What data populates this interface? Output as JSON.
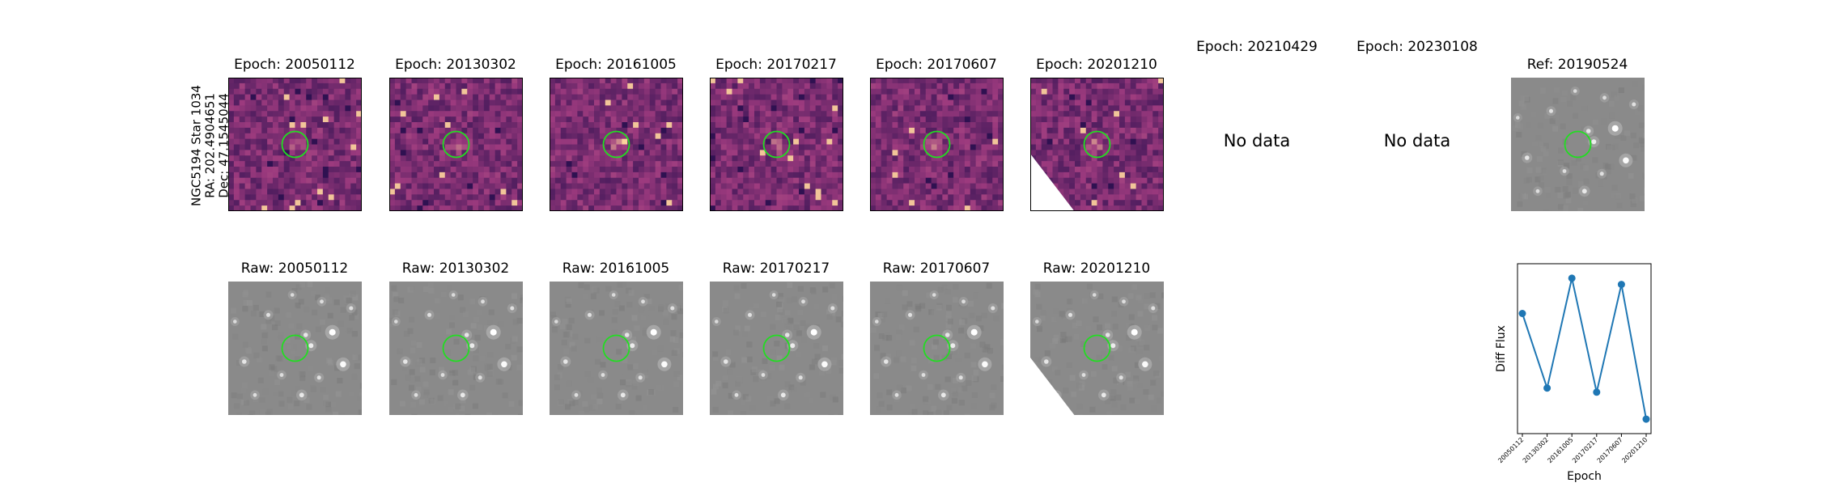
{
  "star_label": {
    "line1": "NGC5194 Star 1034",
    "line2": "RA: 202.4904651",
    "line3": "Dec: 47.1545044"
  },
  "diff_panels": [
    {
      "title": "Epoch: 20050112",
      "status": "image",
      "seed": 11
    },
    {
      "title": "Epoch: 20130302",
      "status": "image",
      "seed": 23
    },
    {
      "title": "Epoch: 20161005",
      "status": "image",
      "seed": 37
    },
    {
      "title": "Epoch: 20170217",
      "status": "image",
      "seed": 41
    },
    {
      "title": "Epoch: 20170607",
      "status": "image",
      "seed": 53
    },
    {
      "title": "Epoch: 20201210",
      "status": "image",
      "seed": 67
    },
    {
      "title": "Epoch: 20210429",
      "status": "No data"
    },
    {
      "title": "Epoch: 20230108",
      "status": "No data"
    }
  ],
  "ref_panel": {
    "title": "Ref: 20190524"
  },
  "raw_panels": [
    {
      "title": "Raw: 20050112"
    },
    {
      "title": "Raw: 20130302"
    },
    {
      "title": "Raw: 20161005"
    },
    {
      "title": "Raw: 20170217"
    },
    {
      "title": "Raw: 20170607"
    },
    {
      "title": "Raw: 20201210"
    }
  ],
  "colors": {
    "marker_circle": "#22dd22",
    "series": "#1f77b4",
    "diff_low": "#2a0f4f",
    "diff_mid": "#9c3a7e",
    "diff_high": "#fcd49c",
    "raw_bg": "#8a8a8a"
  },
  "chart_data": {
    "type": "line",
    "x": [
      "20050112",
      "20130302",
      "20161005",
      "20170217",
      "20170607",
      "20201210"
    ],
    "series": [
      {
        "values": [
          0.68,
          0.32,
          0.85,
          0.3,
          0.82,
          0.17
        ]
      }
    ],
    "xlabel": "Epoch",
    "ylabel": "Diff Flux",
    "ylim": [
      0.1,
      0.92
    ],
    "grid": false
  }
}
